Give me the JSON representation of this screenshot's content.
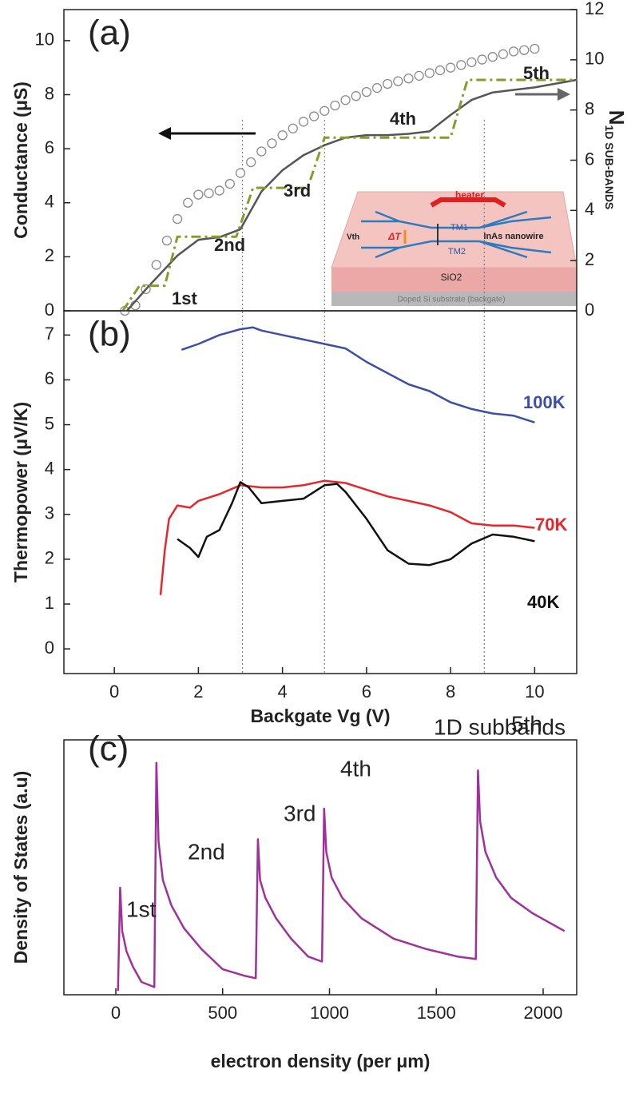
{
  "chart_data": [
    {
      "type": "line",
      "label": "(a)",
      "ylabel": "Conductance (μS)",
      "y2label": "N",
      "y2label_sub": "1D SUB-BANDS",
      "xlim": [
        -1.2,
        11
      ],
      "ylim": [
        0,
        11.15
      ],
      "yticks": [
        0,
        2,
        4,
        6,
        8,
        10
      ],
      "y2lim": [
        0,
        12
      ],
      "y2ticks": [
        0,
        2,
        4,
        6,
        8,
        10,
        12
      ],
      "annotations": [
        "1st",
        "2nd",
        "3rd",
        "4th",
        "5th"
      ],
      "vlines": [
        3.05,
        5.0,
        8.8
      ],
      "inset": {
        "texts": [
          "heater",
          "ΔT",
          "TM1",
          "InAs nanowire",
          "TM2",
          "Vth",
          "SiO2",
          "Doped Si substrate (backgate)"
        ]
      },
      "series": [
        {
          "color": "#8a8a8a",
          "marker": "circle",
          "x": [
            0.25,
            0.5,
            0.75,
            1.0,
            1.25,
            1.5,
            1.75,
            2.0,
            2.25,
            2.5,
            2.75,
            3.0,
            3.25,
            3.5,
            3.75,
            4.0,
            4.25,
            4.5,
            4.75,
            5.0,
            5.25,
            5.5,
            5.75,
            6.0,
            6.25,
            6.5,
            6.75,
            7.0,
            7.25,
            7.5,
            7.75,
            8.0,
            8.25,
            8.5,
            8.75,
            9.0,
            9.25,
            9.5,
            9.75,
            10.0
          ],
          "values": [
            0,
            0.2,
            0.8,
            1.7,
            2.6,
            3.4,
            4.0,
            4.3,
            4.35,
            4.45,
            4.7,
            5.1,
            5.5,
            5.9,
            6.2,
            6.5,
            6.75,
            7.0,
            7.2,
            7.4,
            7.6,
            7.8,
            7.95,
            8.1,
            8.25,
            8.4,
            8.5,
            8.6,
            8.7,
            8.8,
            8.9,
            9.0,
            9.1,
            9.2,
            9.3,
            9.4,
            9.5,
            9.6,
            9.65,
            9.7
          ]
        },
        {
          "color": "#555555",
          "axis": "y2",
          "x": [
            0.3,
            0.8,
            1.5,
            2.0,
            2.5,
            3.0,
            3.5,
            4.0,
            4.5,
            5.0,
            5.5,
            6.0,
            6.5,
            7.0,
            7.5,
            8.0,
            8.5,
            9.0,
            10.0,
            11.0
          ],
          "values": [
            0,
            0.95,
            2.2,
            2.83,
            2.93,
            3.25,
            4.75,
            5.6,
            6.2,
            6.6,
            6.9,
            7.0,
            7.0,
            7.05,
            7.15,
            7.8,
            8.4,
            8.7,
            8.9,
            9.2
          ]
        },
        {
          "color": "#8a9a2a",
          "axis": "y2",
          "dash": "dash-dot",
          "x": [
            0.2,
            0.6,
            1.2,
            1.5,
            2.9,
            3.3,
            4.6,
            5.0,
            8.0,
            8.4,
            11.0
          ],
          "values": [
            0,
            1.0,
            1.0,
            2.95,
            2.95,
            4.9,
            4.9,
            6.9,
            6.9,
            9.2,
            9.2
          ]
        }
      ]
    },
    {
      "type": "line",
      "label": "(b)",
      "ylabel": "Thermopower (μV/K)",
      "xlabel": "Backgate Vg (V)",
      "xlim": [
        -1.2,
        11
      ],
      "xticks": [
        0,
        2,
        4,
        6,
        8,
        10
      ],
      "ylim": [
        -0.55,
        7.54
      ],
      "yticks": [
        0,
        1,
        2,
        3,
        4,
        5,
        6,
        7
      ],
      "series": [
        {
          "name": "100K",
          "color": "#3d4fa5",
          "x": [
            1.6,
            2.0,
            2.5,
            3.0,
            3.3,
            3.5,
            4.0,
            4.5,
            5.0,
            5.5,
            6.0,
            6.5,
            7.0,
            7.5,
            8.0,
            8.5,
            9.0,
            9.5,
            10.0
          ],
          "values": [
            6.67,
            6.8,
            7.0,
            7.13,
            7.17,
            7.1,
            7.0,
            6.9,
            6.8,
            6.7,
            6.4,
            6.15,
            5.9,
            5.75,
            5.5,
            5.35,
            5.25,
            5.2,
            5.05
          ]
        },
        {
          "name": "70K",
          "color": "#e8262b",
          "x": [
            1.1,
            1.2,
            1.3,
            1.5,
            1.8,
            2.0,
            2.5,
            3.0,
            3.5,
            4.0,
            4.5,
            5.0,
            5.5,
            6.0,
            6.5,
            7.0,
            7.5,
            8.0,
            8.5,
            9.0,
            9.5,
            10.0
          ],
          "values": [
            1.2,
            2.2,
            2.9,
            3.2,
            3.15,
            3.3,
            3.45,
            3.65,
            3.6,
            3.6,
            3.65,
            3.75,
            3.7,
            3.55,
            3.4,
            3.3,
            3.2,
            3.05,
            2.8,
            2.75,
            2.75,
            2.7
          ]
        },
        {
          "name": "40K",
          "color": "#111111",
          "x": [
            1.5,
            1.8,
            2.0,
            2.2,
            2.5,
            2.8,
            3.0,
            3.2,
            3.5,
            4.0,
            4.5,
            5.0,
            5.3,
            5.5,
            6.0,
            6.5,
            7.0,
            7.5,
            8.0,
            8.5,
            9.0,
            9.5,
            10.0
          ],
          "values": [
            2.45,
            2.25,
            2.05,
            2.5,
            2.65,
            3.25,
            3.72,
            3.6,
            3.25,
            3.3,
            3.35,
            3.65,
            3.68,
            3.5,
            2.9,
            2.2,
            1.9,
            1.87,
            2.0,
            2.35,
            2.55,
            2.5,
            2.4
          ]
        }
      ]
    },
    {
      "type": "line",
      "label": "(c)",
      "ylabel": "Density of States (a.u)",
      "xlabel": "electron density (per μm)",
      "xlim": [
        -243,
        2157
      ],
      "xticks": [
        0,
        500,
        1000,
        1500,
        2000
      ],
      "ylim": [
        0,
        1
      ],
      "annotations": [
        "1D subbands",
        "1st",
        "2nd",
        "3rd",
        "4th",
        "5th"
      ],
      "series": [
        {
          "color": "#a0309a",
          "x": [
            10,
            20,
            30,
            50,
            80,
            120,
            180,
            190,
            200,
            220,
            260,
            320,
            400,
            500,
            600,
            655,
            665,
            675,
            700,
            750,
            820,
            900,
            965,
            975,
            985,
            1010,
            1060,
            1150,
            1300,
            1450,
            1600,
            1685,
            1695,
            1705,
            1730,
            1780,
            1850,
            1950,
            2100
          ],
          "values": [
            0.015,
            0.42,
            0.25,
            0.17,
            0.11,
            0.05,
            0.03,
            0.91,
            0.6,
            0.45,
            0.35,
            0.26,
            0.18,
            0.1,
            0.075,
            0.065,
            0.61,
            0.45,
            0.38,
            0.3,
            0.22,
            0.15,
            0.13,
            0.73,
            0.56,
            0.46,
            0.38,
            0.3,
            0.22,
            0.18,
            0.15,
            0.14,
            0.88,
            0.68,
            0.56,
            0.46,
            0.38,
            0.32,
            0.25
          ]
        }
      ]
    }
  ]
}
